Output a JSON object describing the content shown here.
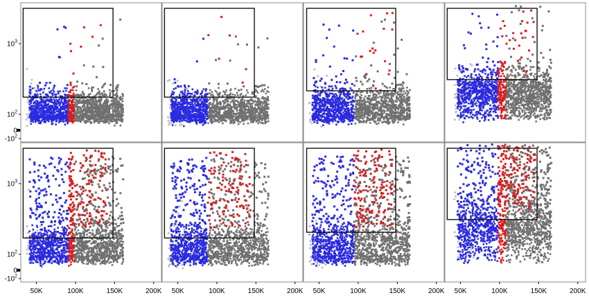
{
  "chart_data": {
    "type": "scatter",
    "layout": "2 rows x 4 columns of flow-cytometry dot plots with shared axes",
    "x_axis": {
      "scale": "linear",
      "range": [
        30000,
        210000
      ],
      "ticks": [
        50000,
        100000,
        150000,
        200000
      ],
      "tick_labels": [
        "50K",
        "100K",
        "150K",
        "200K"
      ],
      "label": ""
    },
    "y_axis": {
      "scale": "biexponential",
      "ticks": [
        -100,
        0,
        100,
        1000
      ],
      "tick_labels": [
        {
          "base": "-10",
          "exp": "2"
        },
        {
          "base": "0",
          "exp": ""
        },
        {
          "base": "10",
          "exp": "2"
        },
        {
          "base": "10",
          "exp": "3"
        }
      ],
      "label": ""
    },
    "population_colors": {
      "low": "#2a2ae0",
      "mid": "#d42020",
      "high": "#707070",
      "outlier": "#b9b9b9"
    },
    "gate_color": "#111111",
    "panels": [
      {
        "row": 0,
        "col": 0,
        "gate": {
          "x": [
            33000,
            148000
          ],
          "y": [
            175,
            8000
          ]
        },
        "blue_x": [
          40000,
          90000
        ],
        "red_x": [
          90000,
          97000
        ],
        "grey_x": [
          97000,
          160000
        ],
        "y_median": 115,
        "y_spread": 0.15,
        "tail_fraction": 0.01
      },
      {
        "row": 0,
        "col": 1,
        "gate": {
          "x": [
            33000,
            148000
          ],
          "y": [
            175,
            8000
          ]
        },
        "blue_x": [
          40000,
          87000
        ],
        "red_x": [
          87000,
          87500
        ],
        "grey_x": [
          87500,
          165000
        ],
        "y_median": 115,
        "y_spread": 0.15,
        "tail_fraction": 0.01
      },
      {
        "row": 0,
        "col": 2,
        "gate": {
          "x": [
            34000,
            148000
          ],
          "y": [
            215,
            8000
          ]
        },
        "blue_x": [
          40000,
          93000
        ],
        "red_x": [
          93000,
          93500
        ],
        "grey_x": [
          93500,
          165000
        ],
        "y_median": 120,
        "y_spread": 0.16,
        "tail_fraction": 0.03
      },
      {
        "row": 0,
        "col": 3,
        "gate": {
          "x": [
            33000,
            148000
          ],
          "y": [
            310,
            8000
          ]
        },
        "blue_x": [
          45000,
          97000
        ],
        "red_x": [
          97000,
          107000
        ],
        "grey_x": [
          107000,
          165000
        ],
        "y_median": 200,
        "y_spread": 0.18,
        "tail_fraction": 0.04
      },
      {
        "row": 1,
        "col": 0,
        "gate": {
          "x": [
            33000,
            148000
          ],
          "y": [
            170,
            8000
          ]
        },
        "blue_x": [
          40000,
          90000
        ],
        "red_x": [
          90000,
          97000
        ],
        "grey_x": [
          97000,
          160000
        ],
        "y_median": 125,
        "y_spread": 0.18,
        "tail_fraction": 0.22
      },
      {
        "row": 1,
        "col": 1,
        "gate": {
          "x": [
            33000,
            148000
          ],
          "y": [
            170,
            8000
          ]
        },
        "blue_x": [
          40000,
          87000
        ],
        "red_x": [
          87000,
          87500
        ],
        "grey_x": [
          87500,
          165000
        ],
        "y_median": 120,
        "y_spread": 0.18,
        "tail_fraction": 0.2
      },
      {
        "row": 1,
        "col": 2,
        "gate": {
          "x": [
            34000,
            148000
          ],
          "y": [
            205,
            8000
          ]
        },
        "blue_x": [
          40000,
          93000
        ],
        "red_x": [
          93000,
          93500
        ],
        "grey_x": [
          93500,
          165000
        ],
        "y_median": 125,
        "y_spread": 0.2,
        "tail_fraction": 0.25
      },
      {
        "row": 1,
        "col": 3,
        "gate": {
          "x": [
            33000,
            148000
          ],
          "y": [
            310,
            8000
          ]
        },
        "blue_x": [
          45000,
          97000
        ],
        "red_x": [
          97000,
          107000
        ],
        "grey_x": [
          107000,
          165000
        ],
        "y_median": 220,
        "y_spread": 0.22,
        "tail_fraction": 0.3
      }
    ]
  }
}
